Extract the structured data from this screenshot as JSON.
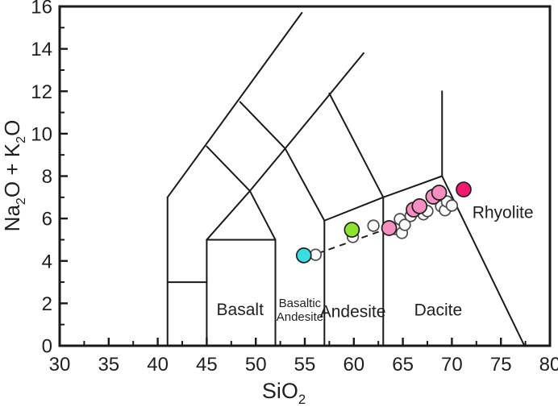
{
  "chart_data": {
    "type": "scatter",
    "title": "",
    "xlabel_plain": "SiO2",
    "ylabel_plain": "Na2O + K2O",
    "xlabel_parts": [
      {
        "t": "SiO"
      },
      {
        "t": "2",
        "sub": true
      }
    ],
    "ylabel_parts": [
      {
        "t": "Na"
      },
      {
        "t": "2",
        "sub": true
      },
      {
        "t": "O + K"
      },
      {
        "t": "2",
        "sub": true
      },
      {
        "t": "O"
      }
    ],
    "xlim": [
      30,
      80
    ],
    "ylim": [
      0,
      16
    ],
    "x_major_ticks": [
      30,
      35,
      40,
      45,
      50,
      55,
      60,
      65,
      70,
      75,
      80
    ],
    "x_minor_ticks": [
      32.5,
      37.5,
      42.5,
      47.5,
      52.5,
      57.5,
      62.5,
      67.5,
      72.5,
      77.5
    ],
    "y_major_ticks": [
      0,
      2,
      4,
      6,
      8,
      10,
      12,
      14,
      16
    ],
    "y_minor_ticks": [
      1,
      3,
      5,
      7,
      9,
      11,
      13,
      15
    ],
    "grid": false,
    "legend": "none",
    "field_boundaries": [
      [
        [
          41,
          0
        ],
        [
          41,
          7
        ]
      ],
      [
        [
          41,
          3
        ],
        [
          45,
          3
        ]
      ],
      [
        [
          45,
          0
        ],
        [
          45,
          5
        ]
      ],
      [
        [
          45,
          5
        ],
        [
          52,
          5
        ]
      ],
      [
        [
          52,
          0
        ],
        [
          52,
          5
        ]
      ],
      [
        [
          57,
          0
        ],
        [
          57,
          5.9
        ]
      ],
      [
        [
          63,
          0
        ],
        [
          63,
          7
        ]
      ],
      [
        [
          41,
          7
        ],
        [
          54.7,
          15.7
        ]
      ],
      [
        [
          45,
          9.4
        ],
        [
          49.4,
          7.3
        ],
        [
          52,
          5
        ]
      ],
      [
        [
          45,
          5
        ],
        [
          49.4,
          7.3
        ],
        [
          53,
          9.3
        ]
      ],
      [
        [
          48.4,
          11.5
        ],
        [
          53,
          9.3
        ]
      ],
      [
        [
          53,
          9.3
        ],
        [
          61,
          13.8
        ]
      ],
      [
        [
          53,
          9.3
        ],
        [
          57,
          5.9
        ]
      ],
      [
        [
          57.5,
          11.9
        ],
        [
          63,
          7
        ]
      ],
      [
        [
          57,
          5.9
        ],
        [
          63,
          7
        ]
      ],
      [
        [
          63,
          7
        ],
        [
          69,
          8
        ]
      ],
      [
        [
          69,
          8
        ],
        [
          69,
          12
        ]
      ],
      [
        [
          69,
          8
        ],
        [
          77.4,
          0
        ]
      ]
    ],
    "field_labels": [
      {
        "text": "Basalt",
        "x": 48.4,
        "y": 1.72,
        "size": 21
      },
      {
        "text": "Basaltic",
        "x": 54.5,
        "y": 2.02,
        "size": 15
      },
      {
        "text": "Andesite",
        "x": 54.5,
        "y": 1.38,
        "size": 15
      },
      {
        "text": "Andesite",
        "x": 59.9,
        "y": 1.63,
        "size": 21
      },
      {
        "text": "Dacite",
        "x": 68.6,
        "y": 1.71,
        "size": 21
      },
      {
        "text": "Rhyolite",
        "x": 75.2,
        "y": 6.31,
        "size": 21
      }
    ],
    "trend_line": {
      "style": "dashed",
      "points": [
        [
          56.3,
          4.35
        ],
        [
          63.6,
          5.55
        ]
      ]
    },
    "series": [
      {
        "name": "open-circle-samples",
        "marker": "open-circle",
        "color": "#FFFFFF",
        "stroke": "#4A4A4A",
        "radius": 6.8,
        "points": [
          [
            56.1,
            4.29
          ],
          [
            59.9,
            5.13
          ],
          [
            62.0,
            5.66
          ],
          [
            64.2,
            5.51
          ],
          [
            64.7,
            5.97
          ],
          [
            64.9,
            5.32
          ],
          [
            65.2,
            5.7
          ],
          [
            65.8,
            6.12
          ],
          [
            67.1,
            6.2
          ],
          [
            67.5,
            6.35
          ],
          [
            68.9,
            6.58
          ],
          [
            69.3,
            6.39
          ],
          [
            69.5,
            6.8
          ],
          [
            70.0,
            6.61
          ]
        ]
      },
      {
        "name": "pink-samples",
        "marker": "filled-circle",
        "color": "#F48FC0",
        "stroke": "#1F1F1F",
        "radius": 9,
        "points": [
          [
            63.6,
            5.55
          ],
          [
            66.1,
            6.42
          ],
          [
            66.7,
            6.58
          ],
          [
            68.1,
            7.03
          ],
          [
            68.7,
            7.22
          ]
        ]
      },
      {
        "name": "cyan-sample",
        "marker": "filled-circle",
        "color": "#3ADEE2",
        "stroke": "#1F1F1F",
        "radius": 9,
        "points": [
          [
            54.9,
            4.26
          ]
        ]
      },
      {
        "name": "green-sample",
        "marker": "filled-circle",
        "color": "#8CE42F",
        "stroke": "#1F1F1F",
        "radius": 9,
        "points": [
          [
            59.8,
            5.47
          ]
        ]
      },
      {
        "name": "deep-pink-sample",
        "marker": "filled-circle",
        "color": "#F31970",
        "stroke": "#1F1F1F",
        "radius": 9,
        "points": [
          [
            71.2,
            7.37
          ]
        ]
      }
    ]
  },
  "style": {
    "axis_color": "#1A1A1A",
    "text_color": "#1F1F1F",
    "border_width": 3,
    "line_width": 2,
    "tick_font_size": 24,
    "axis_title_font_size": 27
  }
}
